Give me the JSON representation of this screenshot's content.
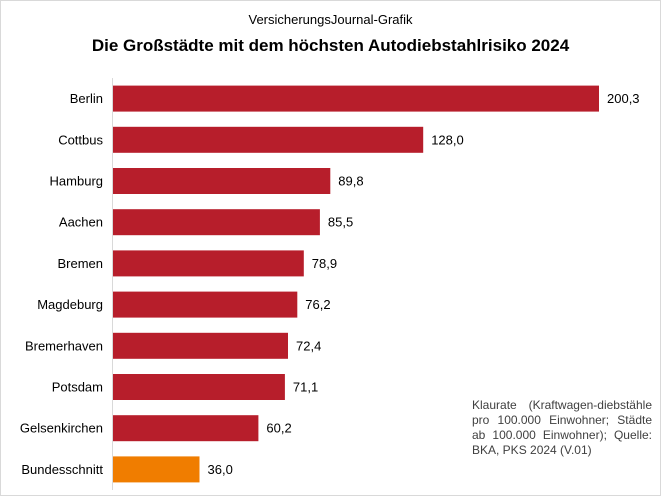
{
  "chart_data": {
    "type": "bar",
    "orientation": "horizontal",
    "subtitle": "VersicherungsJournal-Grafik",
    "title": "Die Großstädte mit dem höchsten Autodiebstahlrisiko 2024",
    "categories": [
      "Berlin",
      "Cottbus",
      "Hamburg",
      "Aachen",
      "Bremen",
      "Magdeburg",
      "Bremerhaven",
      "Potsdam",
      "Gelsenkirchen",
      "Bundesschnitt"
    ],
    "values": [
      200.3,
      128.0,
      89.8,
      85.5,
      78.9,
      76.2,
      72.4,
      71.1,
      60.2,
      36.0
    ],
    "value_labels": [
      "200,3",
      "128,0",
      "89,8",
      "85,5",
      "78,9",
      "76,2",
      "72,4",
      "71,1",
      "60,2",
      "36,0"
    ],
    "colors": [
      "#B71E2B",
      "#B71E2B",
      "#B71E2B",
      "#B71E2B",
      "#B71E2B",
      "#B71E2B",
      "#B71E2B",
      "#B71E2B",
      "#B71E2B",
      "#F07D00"
    ],
    "xlim": [
      0,
      220
    ],
    "grid": false,
    "legend": "none",
    "note": "Klaurate (Kraftwagen-diebstähle pro 100.000 Einwohner; Städte ab 100.000 Einwohner); Quelle: BKA, PKS 2024 (V.01)"
  }
}
